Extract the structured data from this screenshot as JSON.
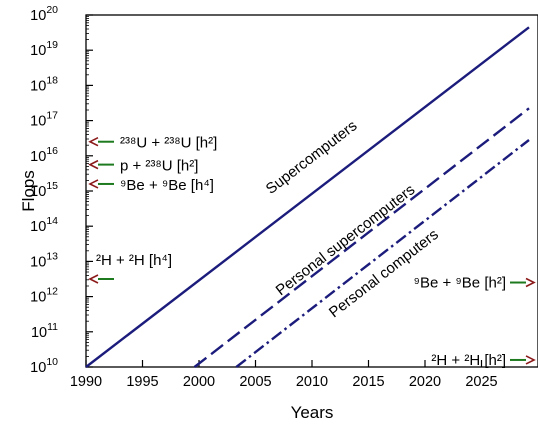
{
  "chart_data": {
    "type": "line",
    "title": "",
    "xlabel": "Years",
    "ylabel": "Flops",
    "xlim": [
      1990,
      2030
    ],
    "ylim_log10": [
      10,
      20
    ],
    "y_scale": "log",
    "grid": false,
    "legend": "none",
    "x_ticks": [
      {
        "value": 1990,
        "label": "1990"
      },
      {
        "value": 1995,
        "label": "1995"
      },
      {
        "value": 2000,
        "label": "2000"
      },
      {
        "value": 2005,
        "label": "2005"
      },
      {
        "value": 2010,
        "label": "2010"
      },
      {
        "value": 2015,
        "label": "2015"
      },
      {
        "value": 2020,
        "label": "2020"
      },
      {
        "value": 2025,
        "label": "2025"
      }
    ],
    "y_ticks": [
      {
        "exp": 10,
        "base": "10",
        "sup": "10"
      },
      {
        "exp": 11,
        "base": "10",
        "sup": "11"
      },
      {
        "exp": 12,
        "base": "10",
        "sup": "12"
      },
      {
        "exp": 13,
        "base": "10",
        "sup": "13"
      },
      {
        "exp": 14,
        "base": "10",
        "sup": "14"
      },
      {
        "exp": 15,
        "base": "10",
        "sup": "15"
      },
      {
        "exp": 16,
        "base": "10",
        "sup": "16"
      },
      {
        "exp": 17,
        "base": "10",
        "sup": "17"
      },
      {
        "exp": 18,
        "base": "10",
        "sup": "18"
      },
      {
        "exp": 19,
        "base": "10",
        "sup": "19"
      },
      {
        "exp": 20,
        "base": "10",
        "sup": "20"
      }
    ],
    "series": [
      {
        "label": "Supercomputers",
        "style": "solid",
        "x": [
          1990,
          2029.2
        ],
        "log10_y": [
          10.0,
          19.65
        ]
      },
      {
        "label": "Personal supercomputers",
        "style": "dashed",
        "x": [
          1999.6,
          2029.2
        ],
        "log10_y": [
          10.0,
          17.35
        ]
      },
      {
        "label": "Personal computers",
        "style": "dashdot",
        "x": [
          2003.3,
          2029.2
        ],
        "log10_y": [
          10.0,
          16.45
        ]
      }
    ],
    "annotations": [
      {
        "text": "²³⁸U + ²³⁸U  [h²]",
        "log10_y": 16.4,
        "side": "left"
      },
      {
        "text": "p + ²³⁸U  [h²]",
        "log10_y": 15.75,
        "side": "left"
      },
      {
        "text": "⁹Be + ⁹Be  [h⁴]",
        "log10_y": 15.2,
        "side": "left"
      },
      {
        "text": "²H + ²H  [h⁴]",
        "log10_y": 12.5,
        "side": "left"
      },
      {
        "text": "⁹Be + ⁹Be  [h²]",
        "log10_y": 12.4,
        "side": "right"
      },
      {
        "text": "²H + ²H  [h²]",
        "log10_y": 10.2,
        "side": "right"
      }
    ],
    "colors": {
      "line": "#1c1c7c",
      "arrow_head": "#8b1a1a",
      "arrow_shaft": "#1e7a1e"
    }
  }
}
